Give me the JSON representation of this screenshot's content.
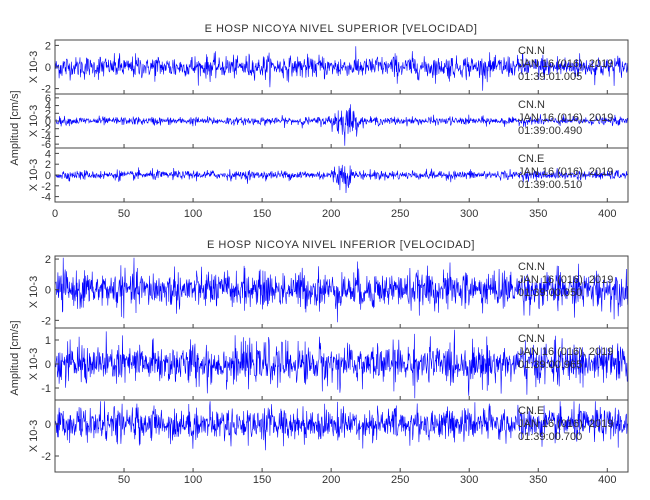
{
  "trace_color": "#0000ff",
  "axis_color": "#444444",
  "chart_data": [
    {
      "type": "line",
      "title": "E HOSP NICOYA NIVEL SUPERIOR [VELOCIDAD]",
      "ylabel": "Amplitud [cm/s]",
      "scale_label": "X 10-3",
      "xlim": [
        0,
        415
      ],
      "x_ticks": [
        0,
        50,
        100,
        150,
        200,
        250,
        300,
        350,
        400
      ],
      "x_tick_labels": [
        "0",
        "50",
        "100",
        "150",
        "200",
        "250",
        "300",
        "350",
        "400"
      ],
      "grid": false,
      "series": [
        {
          "label_lines": [
            "CN.N",
            "JAN 16 (016), 2019",
            "01:39:01.005"
          ],
          "ylim": [
            -2.5,
            2.5
          ],
          "y_ticks": [
            -2,
            0,
            2
          ],
          "y_tick_labels": [
            "-2",
            "0",
            "2"
          ],
          "noise_amplitude": 1.1,
          "events": []
        },
        {
          "label_lines": [
            "CN.N",
            "JAN 16 (016), 2019",
            "01:39:00.490"
          ],
          "ylim": [
            -7,
            7
          ],
          "y_ticks": [
            -6,
            -4,
            -2,
            0,
            2,
            4,
            6
          ],
          "y_tick_labels": [
            "-6",
            "-4",
            "-2",
            "0",
            "2",
            "4",
            "6"
          ],
          "noise_amplitude": 1.1,
          "events": [
            {
              "start": 195,
              "end": 225,
              "peak": 5.5
            }
          ]
        },
        {
          "label_lines": [
            "CN.E",
            "JAN 16 (016), 2019",
            "01:39:00.510"
          ],
          "ylim": [
            -5,
            5
          ],
          "y_ticks": [
            -4,
            -2,
            0,
            2,
            4
          ],
          "y_tick_labels": [
            "-4",
            "-2",
            "0",
            "2",
            "4"
          ],
          "noise_amplitude": 0.9,
          "events": [
            {
              "start": 198,
              "end": 218,
              "peak": 3.5
            }
          ]
        }
      ]
    },
    {
      "type": "line",
      "title": "E HOSP NICOYA NIVEL INFERIOR [VELOCIDAD]",
      "ylabel": "Amplitud [cm/s]",
      "scale_label": "X 10-3",
      "xlim": [
        0,
        415
      ],
      "x_ticks": [
        50,
        100,
        150,
        200,
        250,
        300,
        350,
        400
      ],
      "x_tick_labels": [
        "50",
        "100",
        "150",
        "200",
        "250",
        "300",
        "350",
        "400"
      ],
      "grid": false,
      "series": [
        {
          "label_lines": [
            "CN.N",
            "JAN 16 (016), 2019",
            "01:39:00.050"
          ],
          "ylim": [
            -2.5,
            2.2
          ],
          "y_ticks": [
            -2,
            0,
            2
          ],
          "y_tick_labels": [
            "-2",
            "0",
            "2"
          ],
          "noise_amplitude": 1.3,
          "events": []
        },
        {
          "label_lines": [
            "CN.N",
            "JAN 16 (016), 2019",
            "01:39:00.965"
          ],
          "ylim": [
            -1.5,
            1.5
          ],
          "y_ticks": [
            -1,
            0,
            1
          ],
          "y_tick_labels": [
            "-1",
            "0",
            "1"
          ],
          "noise_amplitude": 0.9,
          "events": []
        },
        {
          "label_lines": [
            "CN.E",
            "JAN 16 (016), 2019",
            "01:39:00.700"
          ],
          "ylim": [
            -3,
            1.5
          ],
          "y_ticks": [
            -2,
            0
          ],
          "y_tick_labels": [
            "-2",
            "0"
          ],
          "noise_amplitude": 1.1,
          "events": []
        }
      ]
    }
  ]
}
